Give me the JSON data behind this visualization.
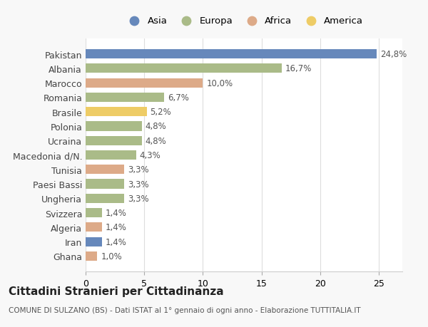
{
  "countries": [
    "Pakistan",
    "Albania",
    "Marocco",
    "Romania",
    "Brasile",
    "Polonia",
    "Ucraina",
    "Macedonia d/N.",
    "Tunisia",
    "Paesi Bassi",
    "Ungheria",
    "Svizzera",
    "Algeria",
    "Iran",
    "Ghana"
  ],
  "values": [
    24.8,
    16.7,
    10.0,
    6.7,
    5.2,
    4.8,
    4.8,
    4.3,
    3.3,
    3.3,
    3.3,
    1.4,
    1.4,
    1.4,
    1.0
  ],
  "labels": [
    "24,8%",
    "16,7%",
    "10,0%",
    "6,7%",
    "5,2%",
    "4,8%",
    "4,8%",
    "4,3%",
    "3,3%",
    "3,3%",
    "3,3%",
    "1,4%",
    "1,4%",
    "1,4%",
    "1,0%"
  ],
  "continents": [
    "Asia",
    "Europa",
    "Africa",
    "Europa",
    "America",
    "Europa",
    "Europa",
    "Europa",
    "Africa",
    "Europa",
    "Europa",
    "Europa",
    "Africa",
    "Asia",
    "Africa"
  ],
  "colors": {
    "Asia": "#6688bb",
    "Europa": "#aabb88",
    "Africa": "#ddaa88",
    "America": "#eecc66"
  },
  "legend_order": [
    "Asia",
    "Europa",
    "Africa",
    "America"
  ],
  "title": "Cittadini Stranieri per Cittadinanza",
  "subtitle": "COMUNE DI SULZANO (BS) - Dati ISTAT al 1° gennaio di ogni anno - Elaborazione TUTTITALIA.IT",
  "xlim": [
    0,
    27
  ],
  "xticks": [
    0,
    5,
    10,
    15,
    20,
    25
  ],
  "background_color": "#f8f8f8",
  "plot_background": "#ffffff",
  "grid_color": "#dddddd"
}
